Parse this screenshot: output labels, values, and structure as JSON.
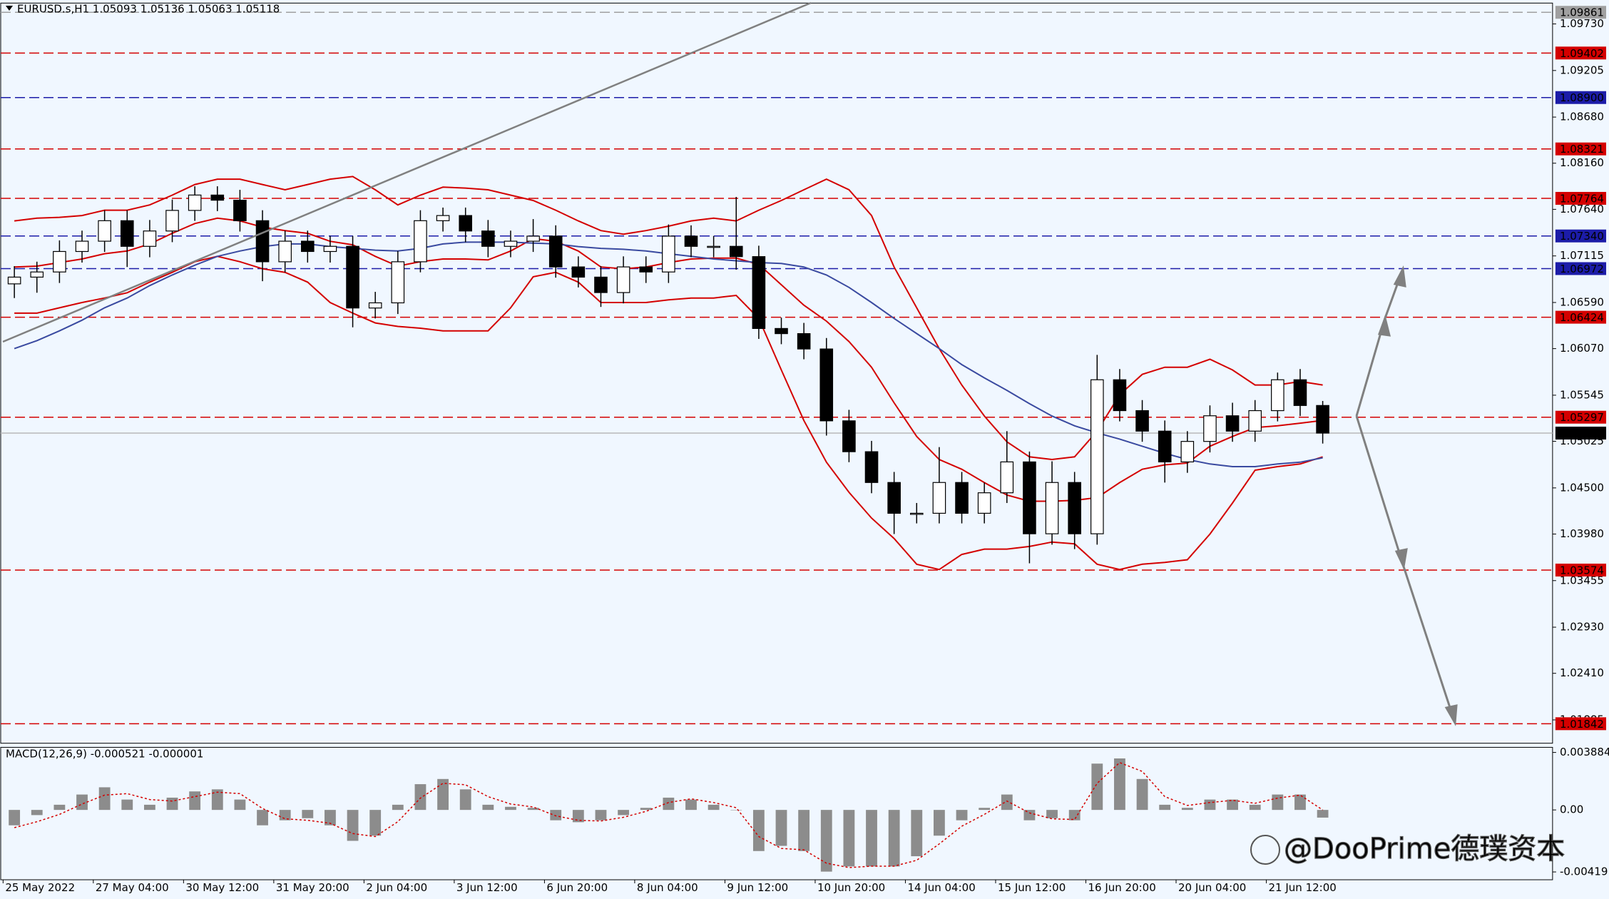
{
  "chart_data": [
    {
      "type": "candlestick",
      "title": "EURUSD.s,H1  1.05093 1.05136 1.05063 1.05118",
      "categories": [
        "25 May 2022",
        null,
        null,
        null,
        "27 May 04:00",
        null,
        null,
        null,
        "30 May 12:00",
        null,
        null,
        null,
        "31 May 20:00",
        null,
        null,
        null,
        "2 Jun 04:00",
        null,
        null,
        null,
        "3 Jun 12:00",
        null,
        null,
        null,
        "6 Jun 20:00",
        null,
        null,
        null,
        "8 Jun 04:00",
        null,
        null,
        null,
        "9 Jun 12:00",
        null,
        null,
        null,
        "10 Jun 20:00",
        null,
        null,
        null,
        "14 Jun 04:00",
        null,
        null,
        null,
        "15 Jun 12:00",
        null,
        null,
        null,
        "16 Jun 20:00",
        null,
        null,
        null,
        "20 Jun 04:00",
        null,
        null,
        null,
        "21 Jun 12:00",
        null,
        null
      ],
      "open": [
        1.068,
        1.06876,
        1.06934,
        1.07165,
        1.07281,
        1.07512,
        1.07223,
        1.07396,
        1.07628,
        1.07801,
        1.07743,
        1.07512,
        1.07049,
        1.07281,
        1.07165,
        1.07223,
        1.06528,
        1.06586,
        1.07049,
        1.07512,
        1.0757,
        1.07396,
        1.07223,
        1.07281,
        1.07338,
        1.06991,
        1.06876,
        1.06702,
        1.06991,
        1.06934,
        1.07338,
        1.07223,
        1.07223,
        1.07107,
        1.06297,
        1.06239,
        1.06066,
        1.05256,
        1.04908,
        1.04561,
        1.04214,
        1.04214,
        1.04561,
        1.04214,
        1.04445,
        1.04793,
        1.03983,
        1.04561,
        1.03983,
        1.05719,
        1.05371,
        1.0514,
        1.04793,
        1.05024,
        1.05313,
        1.0514,
        1.05371,
        1.05719,
        1.05429
      ],
      "high": [
        1.07,
        1.0705,
        1.0729,
        1.074,
        1.0763,
        1.0763,
        1.0752,
        1.0775,
        1.079,
        1.079,
        1.0786,
        1.0763,
        1.074,
        1.074,
        1.0734,
        1.0734,
        1.0671,
        1.0717,
        1.0763,
        1.0766,
        1.0766,
        1.0752,
        1.074,
        1.0753,
        1.0746,
        1.0711,
        1.07,
        1.0711,
        1.0711,
        1.0747,
        1.0746,
        1.0734,
        1.0778,
        1.0723,
        1.0642,
        1.0636,
        1.0619,
        1.0538,
        1.0503,
        1.0468,
        1.0433,
        1.0496,
        1.0468,
        1.0456,
        1.0514,
        1.0491,
        1.048,
        1.0468,
        1.06,
        1.0584,
        1.0549,
        1.0526,
        1.0514,
        1.0543,
        1.0546,
        1.0549,
        1.058,
        1.0584,
        1.0548
      ],
      "low": [
        1.0664,
        1.067,
        1.0681,
        1.0704,
        1.0716,
        1.0699,
        1.071,
        1.0727,
        1.0751,
        1.0762,
        1.0739,
        1.0683,
        1.0693,
        1.0704,
        1.0704,
        1.0631,
        1.0641,
        1.0646,
        1.0693,
        1.0739,
        1.0727,
        1.071,
        1.071,
        1.0716,
        1.0687,
        1.0676,
        1.0654,
        1.0658,
        1.0681,
        1.0681,
        1.071,
        1.071,
        1.0696,
        1.0618,
        1.0612,
        1.0595,
        1.0509,
        1.0479,
        1.0444,
        1.0398,
        1.041,
        1.041,
        1.041,
        1.041,
        1.0433,
        1.0365,
        1.0386,
        1.0381,
        1.0386,
        1.0525,
        1.0502,
        1.0456,
        1.0467,
        1.049,
        1.0502,
        1.0502,
        1.0525,
        1.0531,
        1.05
      ],
      "close": [
        1.06876,
        1.06934,
        1.07165,
        1.07281,
        1.07512,
        1.07223,
        1.07396,
        1.07628,
        1.07801,
        1.07743,
        1.07512,
        1.07049,
        1.07281,
        1.07165,
        1.07223,
        1.06528,
        1.06586,
        1.07049,
        1.07512,
        1.0757,
        1.07396,
        1.07223,
        1.07281,
        1.07338,
        1.06991,
        1.06876,
        1.06702,
        1.06991,
        1.06934,
        1.07338,
        1.07223,
        1.07223,
        1.07107,
        1.06297,
        1.06239,
        1.06066,
        1.05256,
        1.04908,
        1.04561,
        1.04214,
        1.04214,
        1.04561,
        1.04214,
        1.04445,
        1.04793,
        1.03983,
        1.04561,
        1.03983,
        1.05719,
        1.05371,
        1.0514,
        1.04793,
        1.05024,
        1.05313,
        1.0514,
        1.05371,
        1.05719,
        1.05429,
        1.05118
      ],
      "overlays": [
        {
          "color": "#d40000",
          "values": [
            1.0751,
            1.0754,
            1.0755,
            1.0757,
            1.0763,
            1.0763,
            1.0769,
            1.078,
            1.0792,
            1.0798,
            1.0798,
            1.0792,
            1.0786,
            1.0792,
            1.0798,
            1.0801,
            1.0786,
            1.0769,
            1.078,
            1.0789,
            1.0788,
            1.0786,
            1.078,
            1.0774,
            1.0763,
            1.0751,
            1.074,
            1.0736,
            1.074,
            1.0745,
            1.0751,
            1.0754,
            1.0751,
            1.0763,
            1.0774,
            1.0786,
            1.0798,
            1.0786,
            1.0757,
            1.0699,
            1.0653,
            1.0607,
            1.0566,
            1.0531,
            1.0502,
            1.0485,
            1.0482,
            1.0485,
            1.0514,
            1.0555,
            1.0578,
            1.0586,
            1.0586,
            1.0595,
            1.0583,
            1.0566,
            1.0566,
            1.057,
            1.0566
          ]
        },
        {
          "color": "#d40000",
          "values": [
            1.0699,
            1.07,
            1.0704,
            1.0708,
            1.0714,
            1.0717,
            1.0725,
            1.0737,
            1.0748,
            1.0754,
            1.0751,
            1.0744,
            1.074,
            1.0737,
            1.0728,
            1.0724,
            1.0711,
            1.07,
            1.0705,
            1.0708,
            1.0708,
            1.0707,
            1.0717,
            1.0731,
            1.0728,
            1.0717,
            1.0699,
            1.0697,
            1.0699,
            1.0704,
            1.0708,
            1.0709,
            1.0709,
            1.0702,
            1.0679,
            1.0656,
            1.0638,
            1.0615,
            1.0586,
            1.0546,
            1.0508,
            1.0482,
            1.0471,
            1.0456,
            1.0442,
            1.0435,
            1.0435,
            1.0436,
            1.0439,
            1.0456,
            1.0471,
            1.0476,
            1.0478,
            1.0497,
            1.0508,
            1.0518,
            1.052,
            1.0523,
            1.0526
          ]
        },
        {
          "color": "#d40000",
          "values": [
            1.0647,
            1.0647,
            1.0653,
            1.0659,
            1.0664,
            1.067,
            1.0682,
            1.0693,
            1.0705,
            1.0711,
            1.0705,
            1.0697,
            1.0693,
            1.0682,
            1.0659,
            1.0647,
            1.0636,
            1.0632,
            1.063,
            1.0627,
            1.0627,
            1.0627,
            1.0653,
            1.0688,
            1.0693,
            1.0682,
            1.0659,
            1.0659,
            1.0659,
            1.0662,
            1.0664,
            1.0664,
            1.0667,
            1.0641,
            1.0583,
            1.0526,
            1.0479,
            1.0445,
            1.0416,
            1.0393,
            1.0364,
            1.0358,
            1.0375,
            1.0381,
            1.0381,
            1.0384,
            1.0389,
            1.0387,
            1.0364,
            1.0358,
            1.0364,
            1.0366,
            1.0369,
            1.0398,
            1.0433,
            1.047,
            1.0474,
            1.0477,
            1.0485
          ]
        },
        {
          "color": "#3a4aa0",
          "values": [
            1.0607,
            1.0616,
            1.0627,
            1.0639,
            1.0653,
            1.0664,
            1.0678,
            1.069,
            1.0701,
            1.0711,
            1.0717,
            1.0722,
            1.0725,
            1.0725,
            1.0722,
            1.072,
            1.0718,
            1.0717,
            1.072,
            1.0725,
            1.0727,
            1.0727,
            1.0727,
            1.0726,
            1.0725,
            1.0722,
            1.072,
            1.0719,
            1.0717,
            1.0714,
            1.0711,
            1.0708,
            1.0706,
            1.0704,
            1.0703,
            1.0699,
            1.069,
            1.0676,
            1.0659,
            1.0641,
            1.0624,
            1.0607,
            1.0589,
            1.0574,
            1.056,
            1.0545,
            1.0531,
            1.052,
            1.0512,
            1.0505,
            1.0497,
            1.0489,
            1.0482,
            1.0477,
            1.0474,
            1.0474,
            1.0477,
            1.0479,
            1.0484
          ]
        }
      ],
      "levels": [
        {
          "value": 1.09861,
          "label": "1.09861",
          "color": "#a0a0a0",
          "dashed": true
        },
        {
          "value": 1.09402,
          "label": "1.09402",
          "color": "#d40000",
          "dashed": true
        },
        {
          "value": 1.089,
          "label": "1.08900",
          "color": "#1c1ca8",
          "dashed": true
        },
        {
          "value": 1.08321,
          "label": "1.08321",
          "color": "#d40000",
          "dashed": true
        },
        {
          "value": 1.07764,
          "label": "1.07764",
          "color": "#d40000",
          "dashed": true
        },
        {
          "value": 1.0734,
          "label": "1.07340",
          "color": "#1c1ca8",
          "dashed": true
        },
        {
          "value": 1.06972,
          "label": "1.06972",
          "color": "#1c1ca8",
          "dashed": true
        },
        {
          "value": 1.06424,
          "label": "1.06424",
          "color": "#d40000",
          "dashed": true
        },
        {
          "value": 1.05297,
          "label": "1.05297",
          "color": "#d40000",
          "dashed": true
        },
        {
          "value": 1.05118,
          "label": "1.05118",
          "color": "#000000",
          "dashed": false
        },
        {
          "value": 1.03574,
          "label": "1.03574",
          "color": "#d40000",
          "dashed": true
        },
        {
          "value": 1.01842,
          "label": "1.01842",
          "color": "#d40000",
          "dashed": true
        }
      ],
      "ylim": [
        1.01622,
        1.09965
      ],
      "yticks": [
        {
          "value": 1.0973,
          "label": "1.09730"
        },
        1.09205,
        {
          "value": 1.0868,
          "label": "1.08680"
        },
        {
          "value": 1.0816,
          "label": "1.08160"
        },
        {
          "value": 1.0764,
          "label": "1.07640"
        },
        1.07115,
        {
          "value": 1.0659,
          "label": "1.06590"
        },
        {
          "value": 1.0607,
          "label": "1.06070"
        },
        1.05545,
        1.05025,
        {
          "value": 1.045,
          "label": "1.04500"
        },
        {
          "value": 1.0398,
          "label": "1.03980"
        },
        1.03455,
        {
          "value": 1.0293,
          "label": "1.02930"
        },
        {
          "value": 1.0241,
          "label": "1.02410"
        },
        1.01885
      ]
    },
    {
      "type": "macd",
      "title": "MACD(12,26,9) -0.000521 -0.000001",
      "histogram": {
        "color": "#8c8c8c",
        "values": [
          -0.00104,
          -0.00035,
          0.00035,
          0.00104,
          0.00153,
          0.0007,
          0.00035,
          0.00083,
          0.00125,
          0.00139,
          0.0007,
          -0.00104,
          -0.0007,
          -0.00056,
          -0.00104,
          -0.00209,
          -0.00174,
          0.00035,
          0.00174,
          0.00209,
          0.00139,
          0.00035,
          0.00021,
          0.00014,
          -0.0007,
          -0.00083,
          -0.0007,
          -0.00035,
          0.00014,
          0.00083,
          0.0007,
          0.00035,
          0,
          -0.00278,
          -0.00243,
          -0.00278,
          -0.00417,
          -0.00382,
          -0.00382,
          -0.00382,
          -0.00313,
          -0.00174,
          -0.0007,
          0.00014,
          0.00104,
          -0.0007,
          -0.00056,
          -0.0007,
          0.00313,
          0.00348,
          0.00209,
          0.00035,
          0.00014,
          0.0007,
          0.0007,
          0.00035,
          0.00104,
          0.00104,
          -0.00052
        ]
      },
      "signal": {
        "color": "#d40000",
        "values": [
          -0.0012,
          -0.0008,
          -0.0003,
          0.0004,
          0.001,
          0.0011,
          0.0007,
          0.0006,
          0.0009,
          0.0012,
          0.0011,
          0.0001,
          -0.0006,
          -0.0007,
          -0.0009,
          -0.0016,
          -0.0018,
          -0.0008,
          0.0008,
          0.0018,
          0.0017,
          0.0009,
          0.0004,
          0.0002,
          -0.0004,
          -0.0007,
          -0.00075,
          -0.0005,
          -0.0001,
          0.0005,
          0.00075,
          0.0005,
          0.00015,
          -0.0018,
          -0.0026,
          -0.0027,
          -0.0036,
          -0.0039,
          -0.0038,
          -0.0038,
          -0.0034,
          -0.0023,
          -0.0011,
          -0.0003,
          0.0006,
          -0.0002,
          -0.0006,
          -0.00065,
          0.0018,
          0.0032,
          0.0026,
          0.0009,
          0.0003,
          0.0005,
          0.00065,
          0.00045,
          0.0008,
          0.001,
          -1e-06
        ]
      },
      "ylim": [
        -0.00472,
        0.00423
      ],
      "yticks": [
        0.003884,
        {
          "value": 0,
          "label": "0.00"
        },
        -0.004191
      ]
    }
  ],
  "watermark": "@DooPrime德璞资本"
}
